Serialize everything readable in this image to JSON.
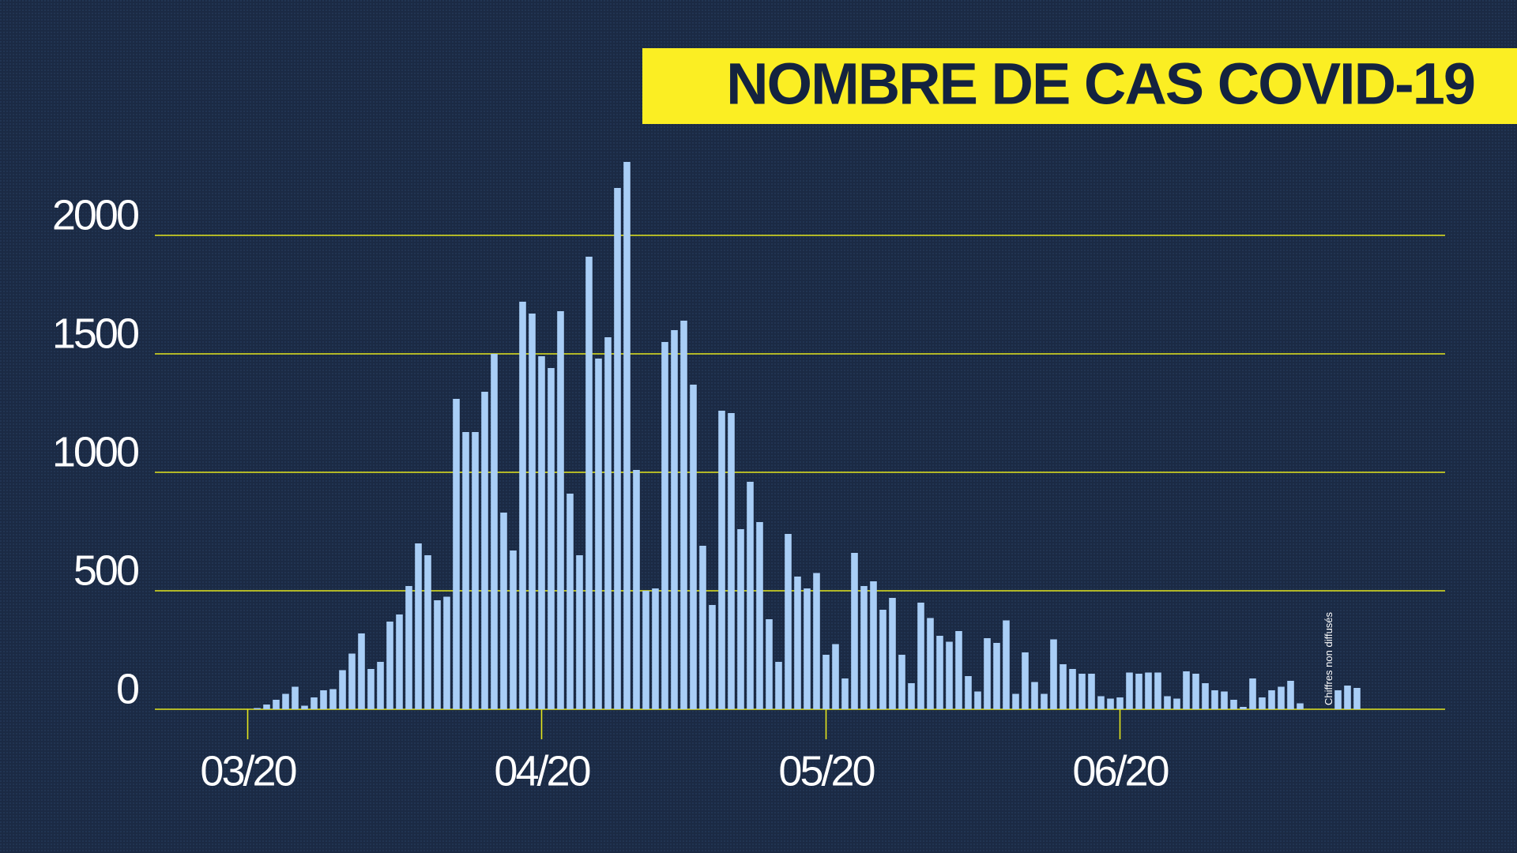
{
  "chart_data": {
    "type": "bar",
    "title": "NOMBRE DE CAS COVID-19",
    "categories": [
      "03/20",
      null,
      null,
      null,
      null,
      null,
      null,
      null,
      null,
      null,
      null,
      null,
      null,
      null,
      null,
      null,
      null,
      null,
      null,
      null,
      null,
      null,
      null,
      null,
      null,
      null,
      null,
      null,
      null,
      null,
      null,
      "04/20",
      null,
      null,
      null,
      null,
      null,
      null,
      null,
      null,
      null,
      null,
      null,
      null,
      null,
      null,
      null,
      null,
      null,
      null,
      null,
      null,
      null,
      null,
      null,
      null,
      null,
      null,
      null,
      null,
      null,
      "05/20",
      null,
      null,
      null,
      null,
      null,
      null,
      null,
      null,
      null,
      null,
      null,
      null,
      null,
      null,
      null,
      null,
      null,
      null,
      null,
      null,
      null,
      null,
      null,
      null,
      null,
      null,
      null,
      null,
      null,
      null,
      "06/20",
      null,
      null,
      null,
      null,
      null,
      null,
      null,
      null,
      null,
      null,
      null,
      null,
      null,
      null,
      null,
      null,
      null,
      null,
      null,
      null,
      null,
      null,
      null,
      null,
      null
    ],
    "values": [
      0,
      5,
      20,
      40,
      65,
      95,
      15,
      50,
      80,
      85,
      165,
      235,
      320,
      170,
      200,
      370,
      400,
      520,
      700,
      650,
      460,
      475,
      1310,
      1170,
      1170,
      1340,
      1500,
      830,
      670,
      1720,
      1670,
      1490,
      1440,
      1680,
      910,
      650,
      1910,
      1480,
      1570,
      2200,
      2310,
      1010,
      500,
      510,
      1550,
      1600,
      1640,
      1370,
      690,
      440,
      1260,
      1250,
      760,
      960,
      790,
      380,
      200,
      740,
      560,
      510,
      575,
      230,
      275,
      130,
      660,
      520,
      540,
      420,
      470,
      230,
      110,
      450,
      385,
      310,
      285,
      330,
      140,
      75,
      300,
      280,
      375,
      65,
      240,
      115,
      65,
      295,
      190,
      170,
      150,
      150,
      55,
      45,
      50,
      155,
      150,
      155,
      155,
      55,
      45,
      160,
      150,
      110,
      80,
      75,
      40,
      10,
      130,
      50,
      80,
      95,
      120,
      25,
      null,
      null,
      null,
      80,
      100,
      90
    ],
    "color": "#a9cef6",
    "grid_color": "#e3e51c",
    "title_background": "#fbee23",
    "annotation": "Chiffres non diffusés",
    "ylim": [
      0,
      2350
    ],
    "yticks": [
      0,
      500,
      1000,
      1500,
      2000
    ],
    "grid": true
  }
}
